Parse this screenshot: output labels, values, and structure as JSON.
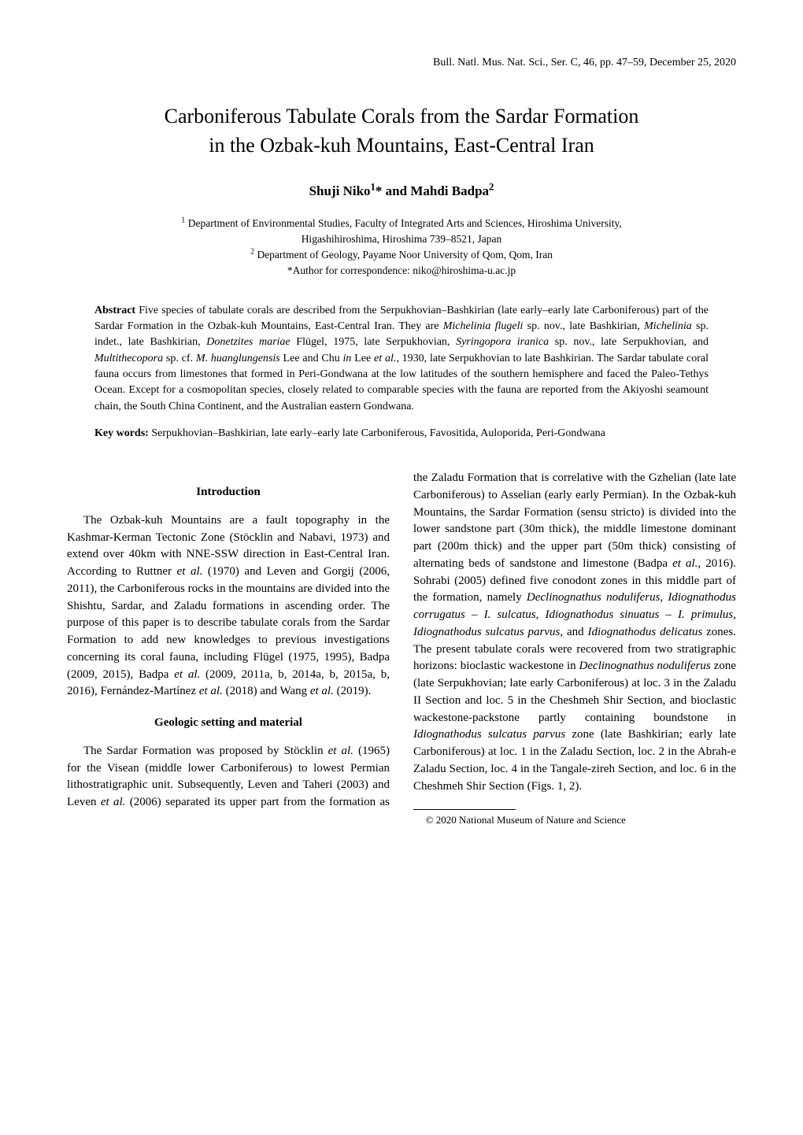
{
  "running_header": "Bull. Natl. Mus. Nat. Sci., Ser. C, 46, pp. 47–59, December 25, 2020",
  "title_line1": "Carboniferous Tabulate Corals from the Sardar Formation",
  "title_line2": "in the Ozbak-kuh Mountains, East-Central Iran",
  "author1_name": "Shuji Niko",
  "author1_sup": "1",
  "author_star": "*",
  "author_and": " and ",
  "author2_name": "Mahdi Badpa",
  "author2_sup": "2",
  "affil1_sup": "1",
  "affil1_text": " Department of Environmental Studies, Faculty of Integrated Arts and Sciences, Hiroshima University,",
  "affil1_line2": "Higashihiroshima, Hiroshima 739–8521, Japan",
  "affil2_sup": "2",
  "affil2_text": " Department of Geology, Payame Noor University of Qom, Qom, Iran",
  "corr_star": "*",
  "corr_text": "Author for correspondence: niko@hiroshima-u.ac.jp",
  "abstract_label": "Abstract",
  "abstract_spacer": "   ",
  "abstract_text_1": "Five species of tabulate corals are described from the Serpukhovian–Bashkirian (late early–early late Carboniferous) part of the Sardar Formation in the Ozbak-kuh Mountains, East-Central Iran. They are ",
  "abstract_sp1": "Michelinia flugeli",
  "abstract_text_2": " sp. nov., late Bashkirian, ",
  "abstract_sp2": "Michelinia",
  "abstract_text_3": " sp. indet., late Bashkirian, ",
  "abstract_sp3": "Donetzites mariae",
  "abstract_text_4": " Flügel, 1975, late Serpukhovian, ",
  "abstract_sp4": "Syringopora iranica",
  "abstract_text_5": " sp. nov., late Serpukhovian, and ",
  "abstract_sp5": "Multithecopora",
  "abstract_text_6": " sp. cf. ",
  "abstract_sp6a": "M",
  "abstract_dot": ". ",
  "abstract_sp6b": "huanglungensis",
  "abstract_text_7": " Lee and Chu ",
  "abstract_in": "in",
  "abstract_text_8": " Lee ",
  "abstract_etal": "et al.",
  "abstract_text_9": ", 1930, late Serpukhovian to late Bashkirian. The Sardar tabulate coral fauna occurs from limestones that formed in Peri-Gondwana at the low latitudes of the southern hemisphere and faced the Paleo-Tethys Ocean. Except for a cosmopolitan species, closely related to comparable species with the fauna are reported from the Akiyoshi seamount chain, the South China Continent, and the Australian eastern Gondwana.",
  "keywords_label": "Key words:",
  "keywords_text": " Serpukhovian–Bashkirian, late early–early late Carboniferous, Favositida, Auloporida, Peri-Gondwana",
  "section_intro": "Introduction",
  "intro_p1a": "The Ozbak-kuh Mountains are a fault topography in the Kashmar-Kerman Tectonic Zone (Stöcklin and Nabavi, 1973) and extend over 40km with NNE-SSW direction in East-Central Iran. According to Ruttner ",
  "intro_p1_etal1": "et al.",
  "intro_p1b": " (1970) and Leven and Gorgij (2006, 2011), the Carboniferous rocks in the mountains are divided into the Shishtu, Sardar, and Zaladu formations in ascending order. The purpose of this paper is to describe tabulate corals from the Sardar Formation to add new knowledges to previous investigations concerning its coral fauna, including Flügel (1975, 1995), Badpa (2009, 2015), Badpa ",
  "intro_p1_etal2": "et al.",
  "intro_p1c": " (2009, 2011a, b, 2014a, b, 2015a, b, 2016), Fernández-Martínez ",
  "intro_p1_etal3": "et al.",
  "intro_p1d": " (2018) and Wang ",
  "intro_p1_etal4": "et al.",
  "intro_p1e": " (2019).",
  "section_geo": "Geologic setting and material",
  "geo_p1a": "The Sardar Formation was proposed by Stöcklin ",
  "geo_p1_etal1": "et al.",
  "geo_p1b": " (1965) for the Visean (middle lower Carboniferous) to lowest Permian lithostratigraphic unit. Subsequently, Leven and Taheri (2003) and Leven ",
  "geo_p1_etal2": "et al.",
  "geo_p1c": " (2006) separated its upper part from the formation as the Zaladu Formation that is correlative with the Gzhelian (late late Carboniferous) to Asselian (early early Permian). In the Ozbak-kuh Mountains, the Sardar Formation (sensu stricto) is divided into the lower sandstone part (30m thick), the middle limestone dominant part (200m thick) and the upper part (50m thick) consisting of alternating beds of sandstone and limestone (Badpa ",
  "geo_p1_etal3": "et al.",
  "geo_p1d": ", 2016). Sohrabi (2005) defined five conodont zones in this middle part of the formation, namely ",
  "geo_sp1": "Declinognathus noduliferus",
  "geo_comma1": ", ",
  "geo_sp2": "Idiognathodus corrugatus",
  "geo_dash1": " – ",
  "geo_sp3": "I. sulcatus",
  "geo_comma2": ", ",
  "geo_sp4": "Idiognathodus sinuatus",
  "geo_dash2": " – ",
  "geo_sp5": "I. primulus",
  "geo_comma3": ", ",
  "geo_sp6": "Idiognathodus sulcatus parvus",
  "geo_and": ", and ",
  "geo_sp7": "Idiognathodus delicatus",
  "geo_p1e": " zones. The present tabulate corals were recovered from two stratigraphic horizons: bioclastic wackestone in ",
  "geo_sp8": "Declinognathus noduliferus",
  "geo_p1f": " zone (late Serpukhovian; late early Carboniferous) at loc. 3 in the Zaladu II Section and loc. 5 in the Cheshmeh Shir Section, and bioclastic wackestone-packstone partly containing boundstone in ",
  "geo_sp9": "Idiognathodus sulcatus parvus",
  "geo_p1g": " zone (late Bashkirian; early late Carboniferous) at loc. 1 in the Zaladu Section, loc. 2 in the Abrah-e Zaladu Section, loc. 4 in the Tangale-zireh Section, and loc. 6 in the Cheshmeh Shir Section (Figs. 1, 2).",
  "footnote": "© 2020 National Museum of Nature and Science"
}
